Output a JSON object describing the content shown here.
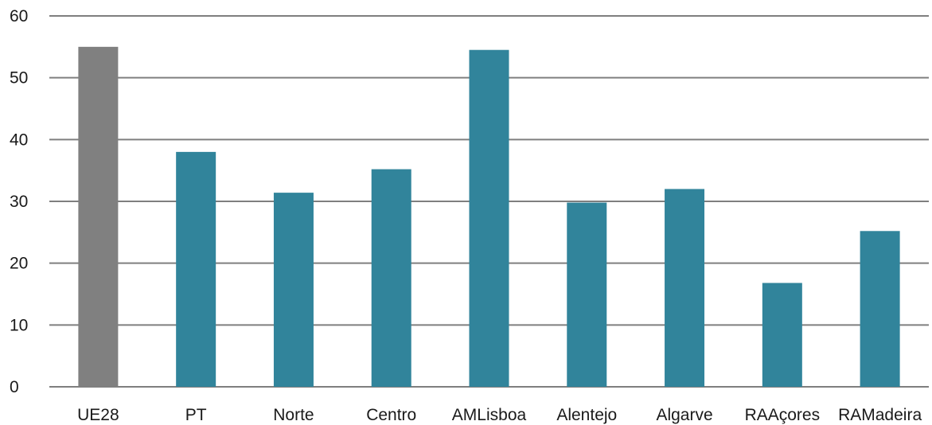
{
  "chart_data": {
    "type": "bar",
    "title": "",
    "xlabel": "",
    "ylabel": "",
    "ylim": [
      0,
      60
    ],
    "yticks": [
      0,
      10,
      20,
      30,
      40,
      50,
      60
    ],
    "categories": [
      "UE28",
      "PT",
      "Norte",
      "Centro",
      "AMLisboa",
      "Alentejo",
      "Algarve",
      "RAAçores",
      "RAMadeira"
    ],
    "values": [
      55.0,
      38.0,
      31.4,
      35.2,
      54.5,
      29.8,
      32.0,
      16.8,
      25.2
    ],
    "bar_colors": [
      "#808080",
      "#31849b",
      "#31849b",
      "#31849b",
      "#31849b",
      "#31849b",
      "#31849b",
      "#31849b",
      "#31849b"
    ],
    "grid": true,
    "legend": "none"
  }
}
